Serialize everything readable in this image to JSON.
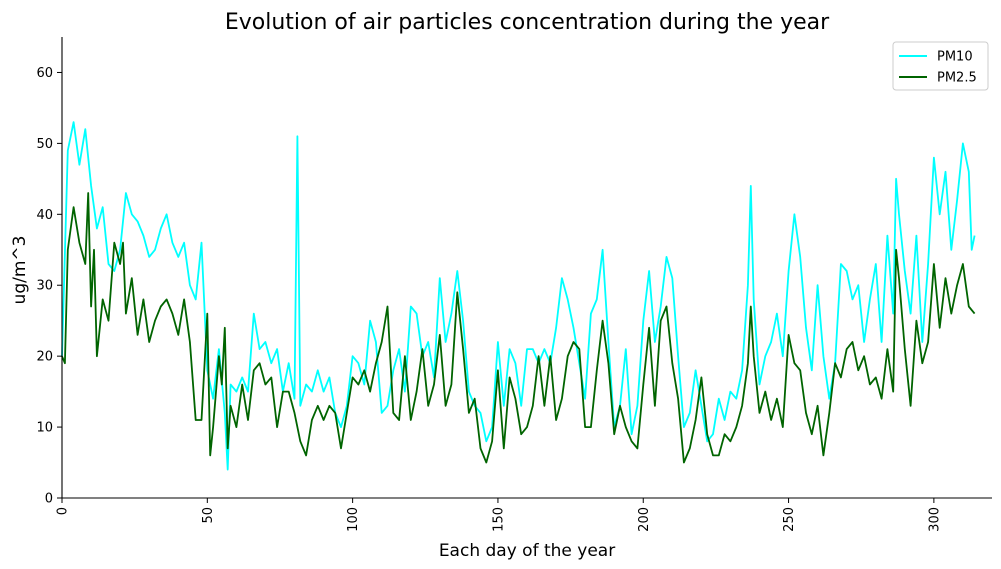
{
  "chart_data": {
    "type": "line",
    "title": "Evolution of air particles concentration during the year",
    "xlabel": "Each day of the year",
    "ylabel": "ug/m^3",
    "xlim": [
      0,
      320
    ],
    "ylim": [
      0,
      65
    ],
    "xticks": [
      0,
      50,
      100,
      150,
      200,
      250,
      300
    ],
    "yticks": [
      0,
      10,
      20,
      30,
      40,
      50,
      60
    ],
    "grid": false,
    "legend_position": "top-right",
    "series": [
      {
        "name": "PM10",
        "color": "#00FFFF",
        "points": [
          [
            0,
            20
          ],
          [
            2,
            49
          ],
          [
            4,
            53
          ],
          [
            6,
            47
          ],
          [
            8,
            52
          ],
          [
            10,
            44
          ],
          [
            12,
            38
          ],
          [
            14,
            41
          ],
          [
            16,
            33
          ],
          [
            18,
            32
          ],
          [
            20,
            35
          ],
          [
            22,
            43
          ],
          [
            24,
            40
          ],
          [
            26,
            39
          ],
          [
            28,
            37
          ],
          [
            30,
            34
          ],
          [
            32,
            35
          ],
          [
            34,
            38
          ],
          [
            36,
            40
          ],
          [
            38,
            36
          ],
          [
            40,
            34
          ],
          [
            42,
            36
          ],
          [
            44,
            30
          ],
          [
            46,
            28
          ],
          [
            48,
            36
          ],
          [
            50,
            18
          ],
          [
            52,
            14
          ],
          [
            54,
            21
          ],
          [
            56,
            12
          ],
          [
            57,
            4
          ],
          [
            58,
            16
          ],
          [
            60,
            15
          ],
          [
            62,
            17
          ],
          [
            64,
            15
          ],
          [
            66,
            26
          ],
          [
            68,
            21
          ],
          [
            70,
            22
          ],
          [
            72,
            19
          ],
          [
            74,
            21
          ],
          [
            76,
            15
          ],
          [
            78,
            19
          ],
          [
            80,
            14
          ],
          [
            81,
            51
          ],
          [
            82,
            13
          ],
          [
            84,
            16
          ],
          [
            86,
            15
          ],
          [
            88,
            18
          ],
          [
            90,
            15
          ],
          [
            92,
            17
          ],
          [
            94,
            12
          ],
          [
            96,
            10
          ],
          [
            98,
            13
          ],
          [
            100,
            20
          ],
          [
            102,
            19
          ],
          [
            104,
            16
          ],
          [
            106,
            25
          ],
          [
            108,
            22
          ],
          [
            110,
            12
          ],
          [
            112,
            13
          ],
          [
            114,
            18
          ],
          [
            116,
            21
          ],
          [
            118,
            15
          ],
          [
            120,
            27
          ],
          [
            122,
            26
          ],
          [
            124,
            20
          ],
          [
            126,
            22
          ],
          [
            128,
            17
          ],
          [
            130,
            31
          ],
          [
            132,
            22
          ],
          [
            134,
            26
          ],
          [
            136,
            32
          ],
          [
            138,
            25
          ],
          [
            140,
            15
          ],
          [
            142,
            13
          ],
          [
            144,
            12
          ],
          [
            146,
            8
          ],
          [
            148,
            10
          ],
          [
            150,
            22
          ],
          [
            152,
            13
          ],
          [
            154,
            21
          ],
          [
            156,
            19
          ],
          [
            158,
            13
          ],
          [
            160,
            21
          ],
          [
            162,
            21
          ],
          [
            164,
            19
          ],
          [
            166,
            21
          ],
          [
            168,
            19
          ],
          [
            170,
            24
          ],
          [
            172,
            31
          ],
          [
            174,
            28
          ],
          [
            176,
            24
          ],
          [
            178,
            19
          ],
          [
            180,
            14
          ],
          [
            182,
            26
          ],
          [
            184,
            28
          ],
          [
            186,
            35
          ],
          [
            188,
            22
          ],
          [
            190,
            10
          ],
          [
            192,
            13
          ],
          [
            194,
            21
          ],
          [
            196,
            9
          ],
          [
            198,
            13
          ],
          [
            200,
            25
          ],
          [
            202,
            32
          ],
          [
            204,
            22
          ],
          [
            206,
            27
          ],
          [
            208,
            34
          ],
          [
            210,
            31
          ],
          [
            212,
            20
          ],
          [
            214,
            10
          ],
          [
            216,
            12
          ],
          [
            218,
            18
          ],
          [
            220,
            13
          ],
          [
            222,
            8
          ],
          [
            224,
            9
          ],
          [
            226,
            14
          ],
          [
            228,
            11
          ],
          [
            230,
            15
          ],
          [
            232,
            14
          ],
          [
            234,
            18
          ],
          [
            236,
            30
          ],
          [
            237,
            44
          ],
          [
            238,
            28
          ],
          [
            240,
            16
          ],
          [
            242,
            20
          ],
          [
            244,
            22
          ],
          [
            246,
            26
          ],
          [
            248,
            20
          ],
          [
            250,
            32
          ],
          [
            252,
            40
          ],
          [
            254,
            34
          ],
          [
            256,
            24
          ],
          [
            258,
            18
          ],
          [
            260,
            30
          ],
          [
            262,
            20
          ],
          [
            264,
            14
          ],
          [
            266,
            19
          ],
          [
            268,
            33
          ],
          [
            270,
            32
          ],
          [
            272,
            28
          ],
          [
            274,
            30
          ],
          [
            276,
            22
          ],
          [
            278,
            28
          ],
          [
            280,
            33
          ],
          [
            282,
            22
          ],
          [
            284,
            37
          ],
          [
            286,
            26
          ],
          [
            287,
            45
          ],
          [
            288,
            40
          ],
          [
            290,
            32
          ],
          [
            292,
            26
          ],
          [
            294,
            37
          ],
          [
            296,
            22
          ],
          [
            298,
            33
          ],
          [
            300,
            48
          ],
          [
            302,
            40
          ],
          [
            304,
            46
          ],
          [
            306,
            35
          ],
          [
            308,
            42
          ],
          [
            310,
            50
          ],
          [
            312,
            46
          ],
          [
            313,
            35
          ],
          [
            314,
            37
          ]
        ]
      },
      {
        "name": "PM2.5",
        "color": "#006400",
        "points": [
          [
            0,
            20
          ],
          [
            1,
            19
          ],
          [
            2,
            35
          ],
          [
            4,
            41
          ],
          [
            6,
            36
          ],
          [
            8,
            33
          ],
          [
            9,
            43
          ],
          [
            10,
            27
          ],
          [
            11,
            35
          ],
          [
            12,
            20
          ],
          [
            14,
            28
          ],
          [
            16,
            25
          ],
          [
            18,
            36
          ],
          [
            20,
            33
          ],
          [
            21,
            36
          ],
          [
            22,
            26
          ],
          [
            24,
            31
          ],
          [
            26,
            23
          ],
          [
            28,
            28
          ],
          [
            30,
            22
          ],
          [
            32,
            25
          ],
          [
            34,
            27
          ],
          [
            36,
            28
          ],
          [
            38,
            26
          ],
          [
            40,
            23
          ],
          [
            42,
            28
          ],
          [
            44,
            22
          ],
          [
            46,
            11
          ],
          [
            48,
            11
          ],
          [
            50,
            26
          ],
          [
            51,
            6
          ],
          [
            52,
            10
          ],
          [
            54,
            20
          ],
          [
            55,
            16
          ],
          [
            56,
            24
          ],
          [
            57,
            7
          ],
          [
            58,
            13
          ],
          [
            60,
            10
          ],
          [
            62,
            16
          ],
          [
            64,
            11
          ],
          [
            66,
            18
          ],
          [
            68,
            19
          ],
          [
            70,
            16
          ],
          [
            72,
            17
          ],
          [
            74,
            10
          ],
          [
            76,
            15
          ],
          [
            78,
            15
          ],
          [
            80,
            12
          ],
          [
            82,
            8
          ],
          [
            84,
            6
          ],
          [
            86,
            11
          ],
          [
            88,
            13
          ],
          [
            90,
            11
          ],
          [
            92,
            13
          ],
          [
            94,
            12
          ],
          [
            96,
            7
          ],
          [
            98,
            12
          ],
          [
            100,
            17
          ],
          [
            102,
            16
          ],
          [
            104,
            18
          ],
          [
            106,
            15
          ],
          [
            108,
            19
          ],
          [
            110,
            22
          ],
          [
            112,
            27
          ],
          [
            114,
            12
          ],
          [
            116,
            11
          ],
          [
            118,
            20
          ],
          [
            120,
            11
          ],
          [
            122,
            15
          ],
          [
            124,
            21
          ],
          [
            126,
            13
          ],
          [
            128,
            16
          ],
          [
            130,
            23
          ],
          [
            132,
            13
          ],
          [
            134,
            16
          ],
          [
            136,
            29
          ],
          [
            138,
            21
          ],
          [
            140,
            12
          ],
          [
            142,
            14
          ],
          [
            144,
            7
          ],
          [
            146,
            5
          ],
          [
            148,
            8
          ],
          [
            150,
            18
          ],
          [
            152,
            7
          ],
          [
            154,
            17
          ],
          [
            156,
            14
          ],
          [
            158,
            9
          ],
          [
            160,
            10
          ],
          [
            162,
            13
          ],
          [
            164,
            20
          ],
          [
            166,
            13
          ],
          [
            168,
            20
          ],
          [
            170,
            11
          ],
          [
            172,
            14
          ],
          [
            174,
            20
          ],
          [
            176,
            22
          ],
          [
            178,
            21
          ],
          [
            180,
            10
          ],
          [
            182,
            10
          ],
          [
            184,
            18
          ],
          [
            186,
            25
          ],
          [
            188,
            19
          ],
          [
            190,
            9
          ],
          [
            192,
            13
          ],
          [
            194,
            10
          ],
          [
            196,
            8
          ],
          [
            198,
            7
          ],
          [
            200,
            16
          ],
          [
            202,
            24
          ],
          [
            204,
            13
          ],
          [
            206,
            25
          ],
          [
            208,
            27
          ],
          [
            210,
            19
          ],
          [
            212,
            14
          ],
          [
            214,
            5
          ],
          [
            216,
            7
          ],
          [
            218,
            11
          ],
          [
            220,
            17
          ],
          [
            222,
            9
          ],
          [
            224,
            6
          ],
          [
            226,
            6
          ],
          [
            228,
            9
          ],
          [
            230,
            8
          ],
          [
            232,
            10
          ],
          [
            234,
            13
          ],
          [
            236,
            19
          ],
          [
            237,
            27
          ],
          [
            238,
            20
          ],
          [
            240,
            12
          ],
          [
            242,
            15
          ],
          [
            244,
            11
          ],
          [
            246,
            14
          ],
          [
            248,
            10
          ],
          [
            250,
            23
          ],
          [
            252,
            19
          ],
          [
            254,
            18
          ],
          [
            256,
            12
          ],
          [
            258,
            9
          ],
          [
            260,
            13
          ],
          [
            262,
            6
          ],
          [
            264,
            12
          ],
          [
            266,
            19
          ],
          [
            268,
            17
          ],
          [
            270,
            21
          ],
          [
            272,
            22
          ],
          [
            274,
            18
          ],
          [
            276,
            20
          ],
          [
            278,
            16
          ],
          [
            280,
            17
          ],
          [
            282,
            14
          ],
          [
            284,
            21
          ],
          [
            286,
            15
          ],
          [
            287,
            35
          ],
          [
            288,
            31
          ],
          [
            290,
            21
          ],
          [
            292,
            13
          ],
          [
            294,
            25
          ],
          [
            296,
            19
          ],
          [
            298,
            22
          ],
          [
            300,
            33
          ],
          [
            302,
            24
          ],
          [
            304,
            31
          ],
          [
            306,
            26
          ],
          [
            308,
            30
          ],
          [
            310,
            33
          ],
          [
            312,
            27
          ],
          [
            314,
            26
          ]
        ]
      }
    ]
  }
}
